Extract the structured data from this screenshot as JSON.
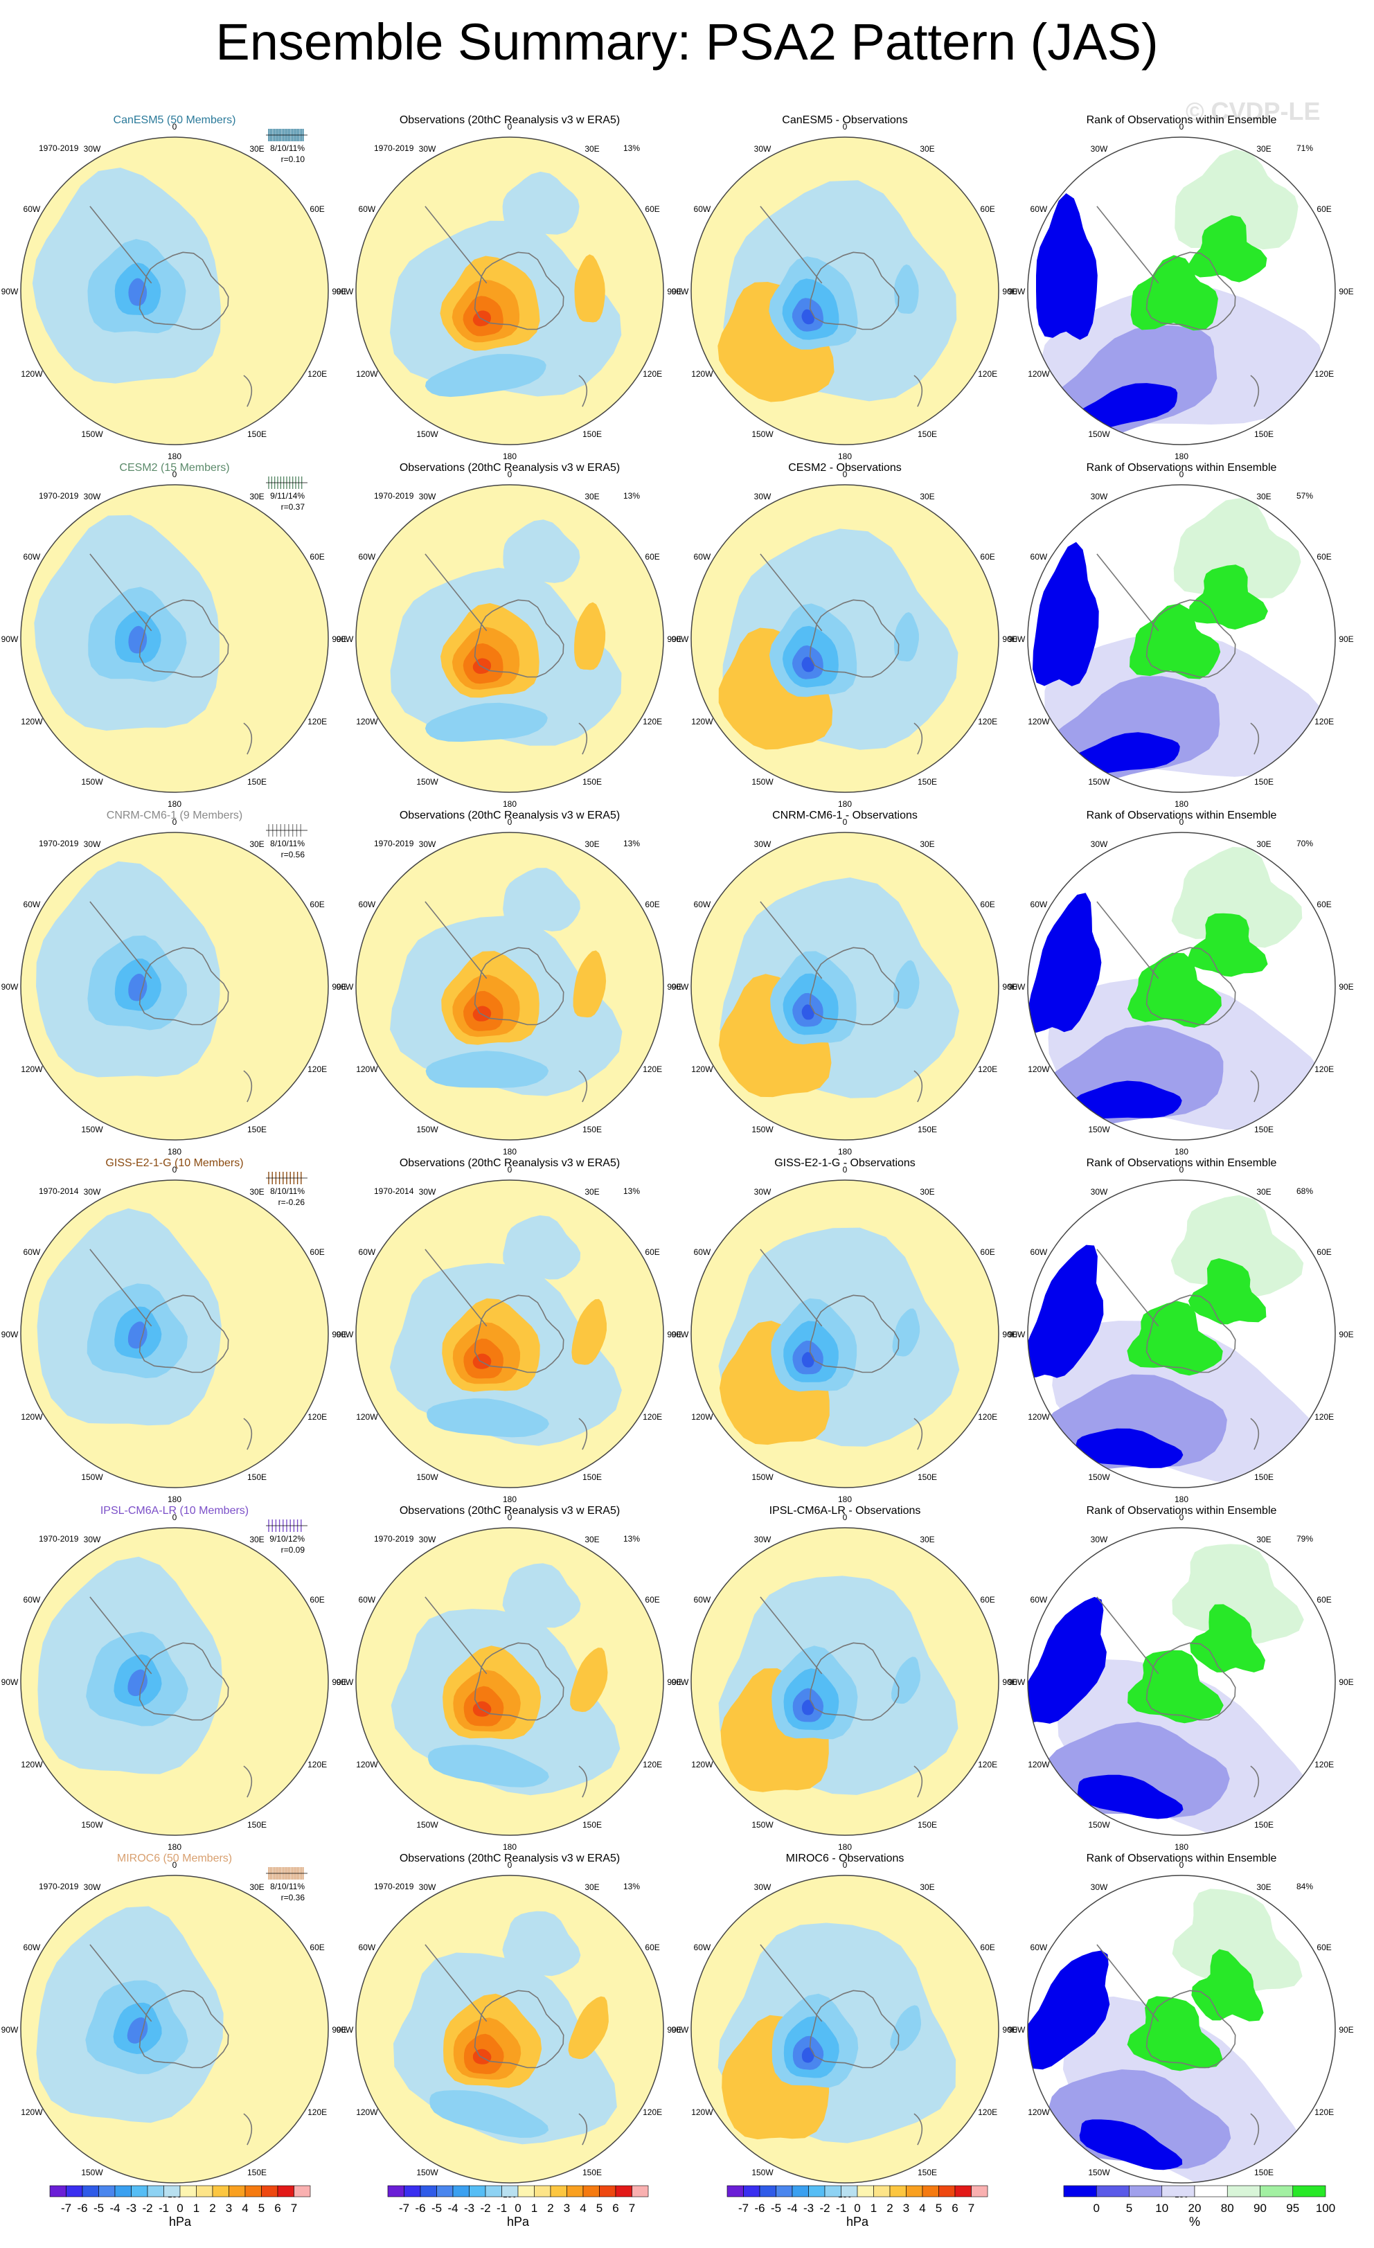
{
  "title": "Ensemble Summary: PSA2 Pattern (JAS)",
  "watermark": "© CVDP-LE",
  "lon_labels": [
    "0",
    "30E",
    "60E",
    "90E",
    "120E",
    "150E",
    "180",
    "150W",
    "120W",
    "90W",
    "60W",
    "30W"
  ],
  "obs_title": "Observations (20thC Reanalysis v3 w ERA5)",
  "rank_title": "Rank of Observations within Ensemble",
  "obs_pct": "13%",
  "diff_suffix": " - Observations",
  "rows": [
    {
      "model": "CanESM5",
      "members_title": "CanESM5 (50 Members)",
      "color": "#2b7a9a",
      "period": "1970-2019",
      "obs_period": "1970-2019",
      "stats": "8/10/11%",
      "r": "r=0.10",
      "rank_pct": "71%",
      "n_ticks": 24
    },
    {
      "model": "CESM2",
      "members_title": "CESM2 (15 Members)",
      "color": "#5b8a6a",
      "period": "1970-2019",
      "obs_period": "1970-2019",
      "stats": "9/11/14%",
      "r": "r=0.37",
      "rank_pct": "57%",
      "n_ticks": 12
    },
    {
      "model": "CNRM-CM6-1",
      "members_title": "CNRM-CM6-1 (9 Members)",
      "color": "#8a8a8a",
      "period": "1970-2019",
      "obs_period": "1970-2019",
      "stats": "8/10/11%",
      "r": "r=0.56",
      "rank_pct": "70%",
      "n_ticks": 9
    },
    {
      "model": "GISS-E2-1-G",
      "members_title": "GISS-E2-1-G (10 Members)",
      "color": "#8a4a10",
      "period": "1970-2014",
      "obs_period": "1970-2014",
      "stats": "8/10/11%",
      "r": "r=-0.26",
      "rank_pct": "68%",
      "n_ticks": 10
    },
    {
      "model": "IPSL-CM6A-LR",
      "members_title": "IPSL-CM6A-LR (10 Members)",
      "color": "#7b4fc8",
      "period": "1970-2019",
      "obs_period": "1970-2019",
      "stats": "9/10/12%",
      "r": "r=0.09",
      "rank_pct": "79%",
      "n_ticks": 10
    },
    {
      "model": "MIROC6",
      "members_title": "MIROC6 (50 Members)",
      "color": "#d8a070",
      "period": "1970-2019",
      "obs_period": "1970-2019",
      "stats": "8/10/11%",
      "r": "r=0.36",
      "rank_pct": "84%",
      "n_ticks": 24
    }
  ],
  "colorbar_hpa": {
    "unit": "hPa",
    "labels": [
      "-7",
      "-6",
      "-5",
      "-4",
      "-3",
      "-2",
      "-1",
      "0",
      "1",
      "2",
      "3",
      "4",
      "5",
      "6",
      "7"
    ],
    "colors": [
      "#6a1fd6",
      "#3a2ff0",
      "#2f5be8",
      "#4a86ee",
      "#3aa0f0",
      "#55bdf5",
      "#8dd2f3",
      "#b8e0f0",
      "#fdf5b0",
      "#fde488",
      "#fcc640",
      "#f9a020",
      "#f57a10",
      "#ee4810",
      "#e21a18",
      "#f9b0b0"
    ]
  },
  "colorbar_rank": {
    "unit": "%",
    "labels": [
      "0",
      "5",
      "10",
      "20",
      "80",
      "90",
      "95",
      "100"
    ],
    "colors": [
      "#0000ee",
      "#5a5ae8",
      "#a0a0ec",
      "#dcdcf7",
      "#ffffff",
      "#d8f5d8",
      "#a2f0a2",
      "#28e828"
    ]
  },
  "field_colors": {
    "pos1": "#fdf5b0",
    "pos2": "#fcc640",
    "pos3": "#f9a020",
    "pos4": "#f57a10",
    "pos5": "#ee4810",
    "neg1": "#b8e0f0",
    "neg2": "#8dd2f3",
    "neg3": "#55bdf5",
    "neg4": "#4a86ee",
    "neg5": "#2f5be8",
    "land": "#777777"
  },
  "rank_colors": {
    "blue": "#0000ee",
    "mid": "#a0a0ec",
    "light": "#dcdcf7",
    "green": "#28e828",
    "lgreen": "#d8f5d8"
  }
}
